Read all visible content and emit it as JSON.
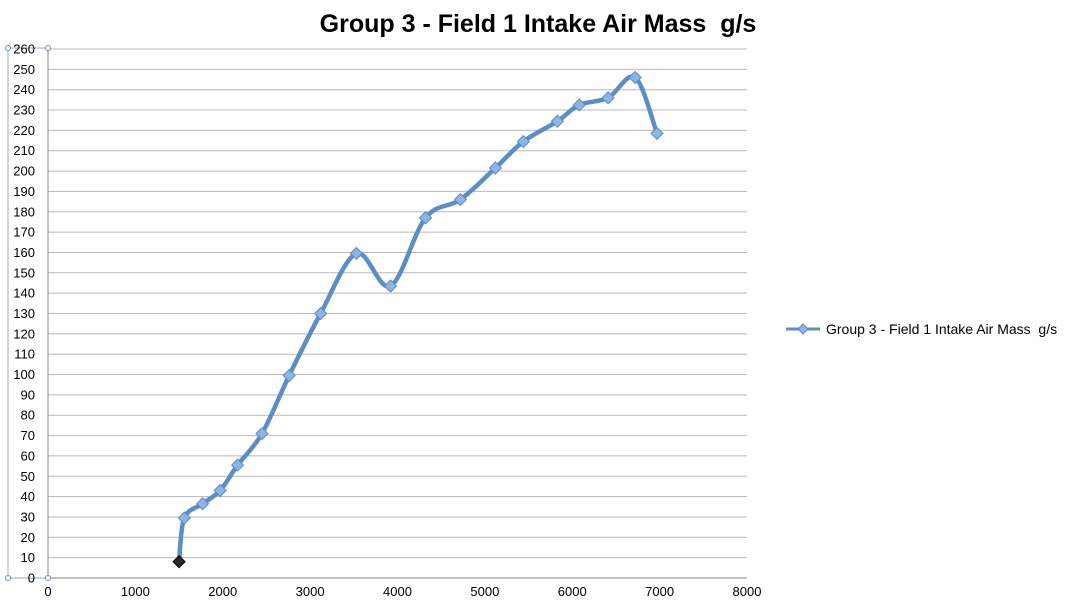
{
  "chart_data": {
    "type": "line",
    "title": "Group 3 - Field 1 Intake Air Mass  g/s",
    "xlabel": "",
    "ylabel": "",
    "xlim": [
      0,
      8000
    ],
    "ylim": [
      0,
      260
    ],
    "x_ticks": [
      0,
      1000,
      2000,
      3000,
      4000,
      5000,
      6000,
      7000,
      8000
    ],
    "y_ticks": [
      0,
      10,
      20,
      30,
      40,
      50,
      60,
      70,
      80,
      90,
      100,
      110,
      120,
      130,
      140,
      150,
      160,
      170,
      180,
      190,
      200,
      210,
      220,
      230,
      240,
      250,
      260
    ],
    "grid": "horizontal",
    "legend_position": "right",
    "smooth": true,
    "series": [
      {
        "name": "Group 3 - Field 1 Intake Air Mass  g/s",
        "color": "#5b8ec4",
        "marker_color": "#8db4e2",
        "x": [
          1500,
          1560,
          1770,
          1970,
          2170,
          2450,
          2760,
          3120,
          3530,
          3920,
          4320,
          4720,
          5120,
          5440,
          5830,
          6080,
          6410,
          6720,
          6970
        ],
        "y": [
          8,
          29.5,
          36.5,
          43,
          55.5,
          71,
          99.5,
          130,
          159.5,
          143.5,
          177,
          186,
          201.5,
          214.5,
          224.5,
          232.5,
          236,
          246,
          218.5
        ]
      }
    ]
  }
}
